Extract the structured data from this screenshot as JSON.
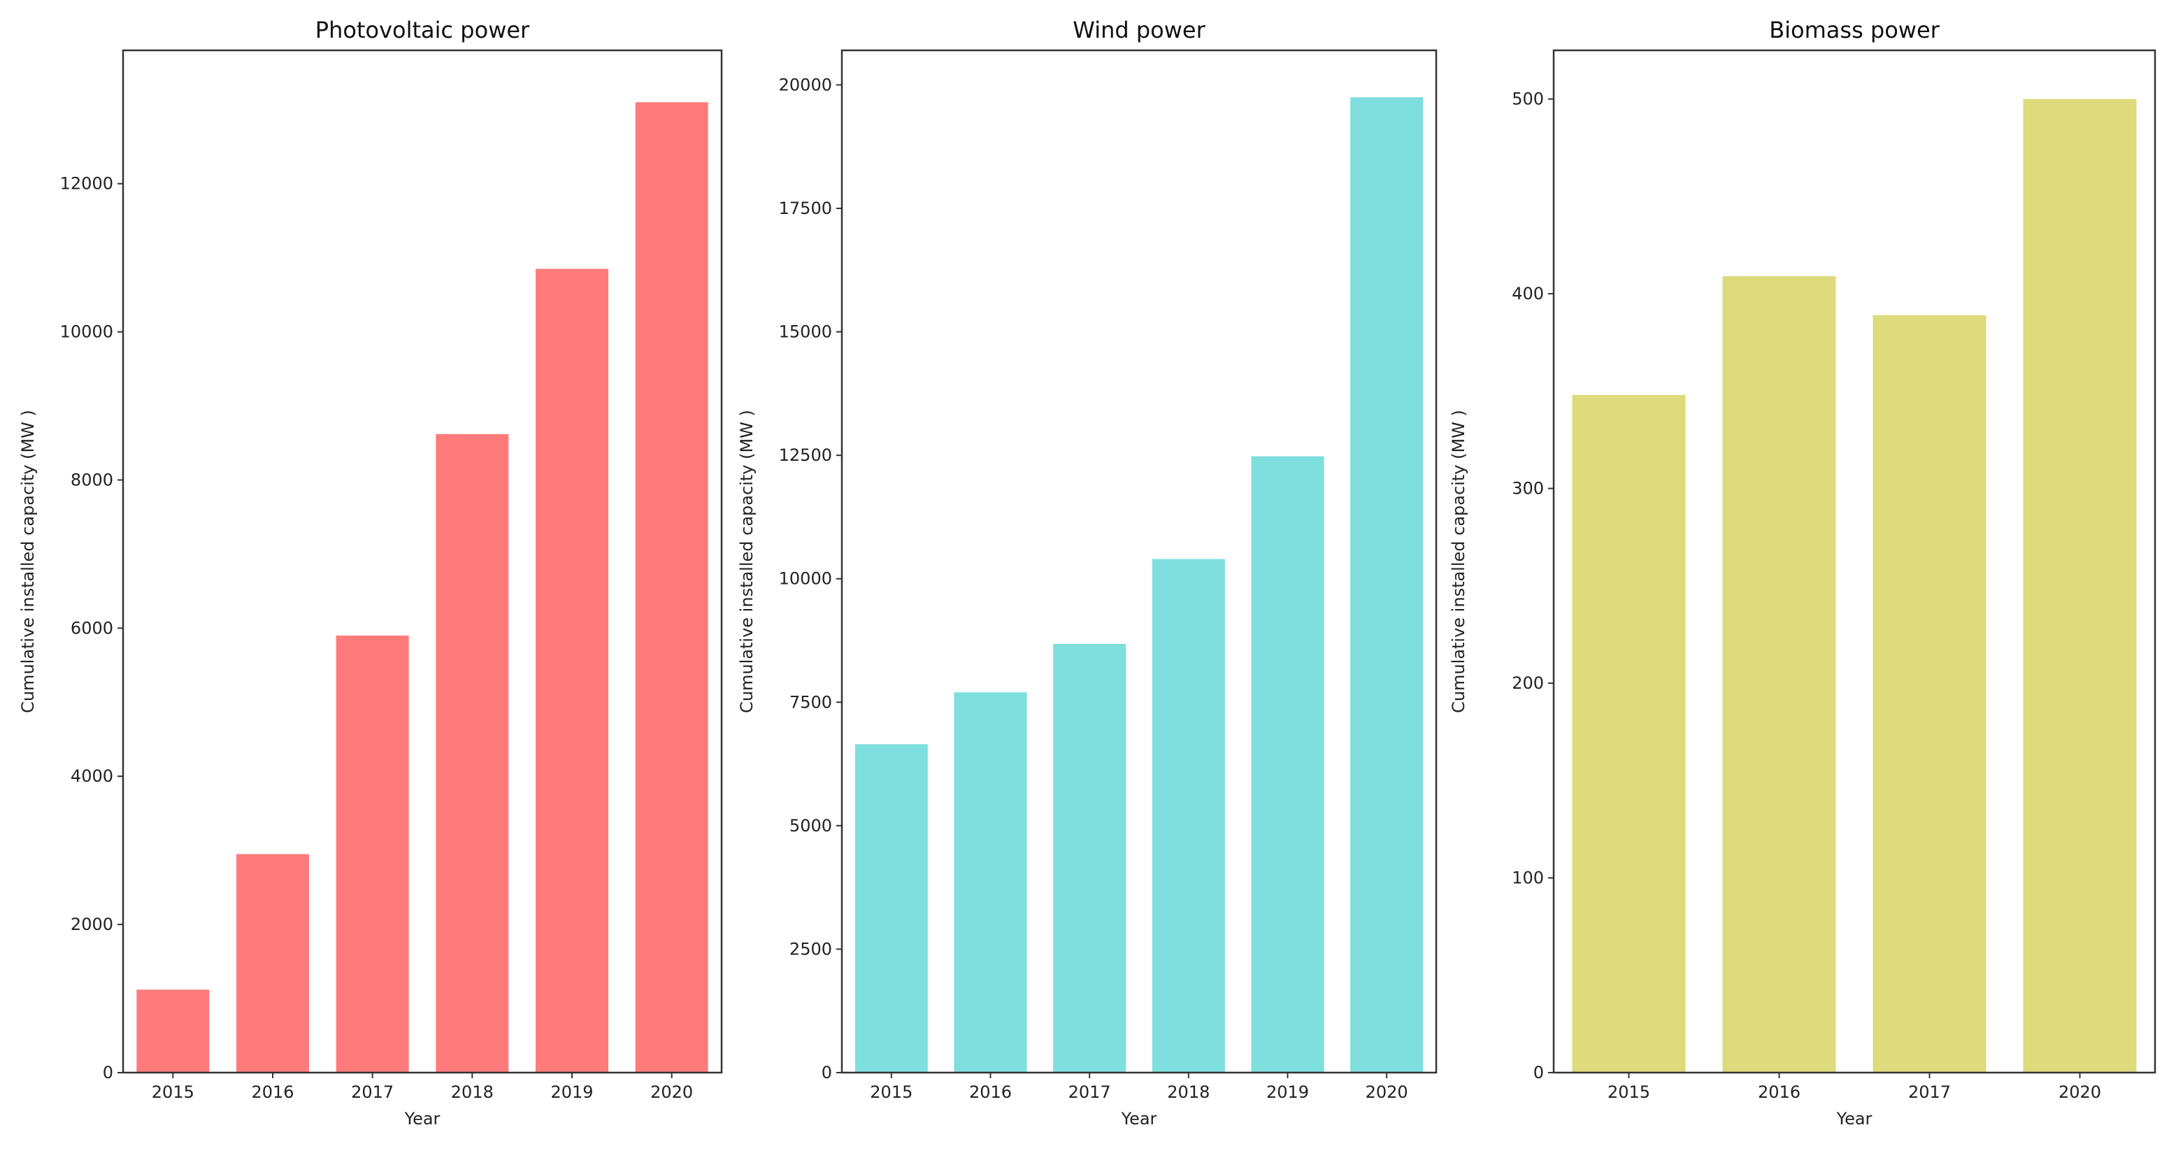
{
  "chart_data": [
    {
      "type": "bar",
      "title": "Photovoltaic power",
      "xlabel": "Year",
      "ylabel": "Cumulative installed capacity (MW )",
      "categories": [
        "2015",
        "2016",
        "2017",
        "2018",
        "2019",
        "2020"
      ],
      "values": [
        1120,
        2950,
        5900,
        8620,
        10850,
        13100
      ],
      "ylim": [
        0,
        13800
      ],
      "yticks": [
        0,
        2000,
        4000,
        6000,
        8000,
        10000,
        12000
      ],
      "color": "#ff7b7b",
      "grid": false
    },
    {
      "type": "bar",
      "title": "Wind power",
      "xlabel": "Year",
      "ylabel": "Cumulative installed capacity (MW )",
      "categories": [
        "2015",
        "2016",
        "2017",
        "2018",
        "2019",
        "2020"
      ],
      "values": [
        6650,
        7700,
        8680,
        10400,
        12480,
        19750
      ],
      "ylim": [
        0,
        20700
      ],
      "yticks": [
        0,
        2500,
        5000,
        7500,
        10000,
        12500,
        15000,
        17500,
        20000
      ],
      "color": "#7fdede",
      "grid": false
    },
    {
      "type": "bar",
      "title": "Biomass power",
      "xlabel": "Year",
      "ylabel": "Cumulative installed capacity (MW )",
      "categories": [
        "2015",
        "2016",
        "2017",
        "2020"
      ],
      "values": [
        348,
        409,
        389,
        500
      ],
      "ylim": [
        0,
        525
      ],
      "yticks": [
        0,
        100,
        200,
        300,
        400,
        500
      ],
      "color": "#dddb7b",
      "grid": false
    }
  ]
}
